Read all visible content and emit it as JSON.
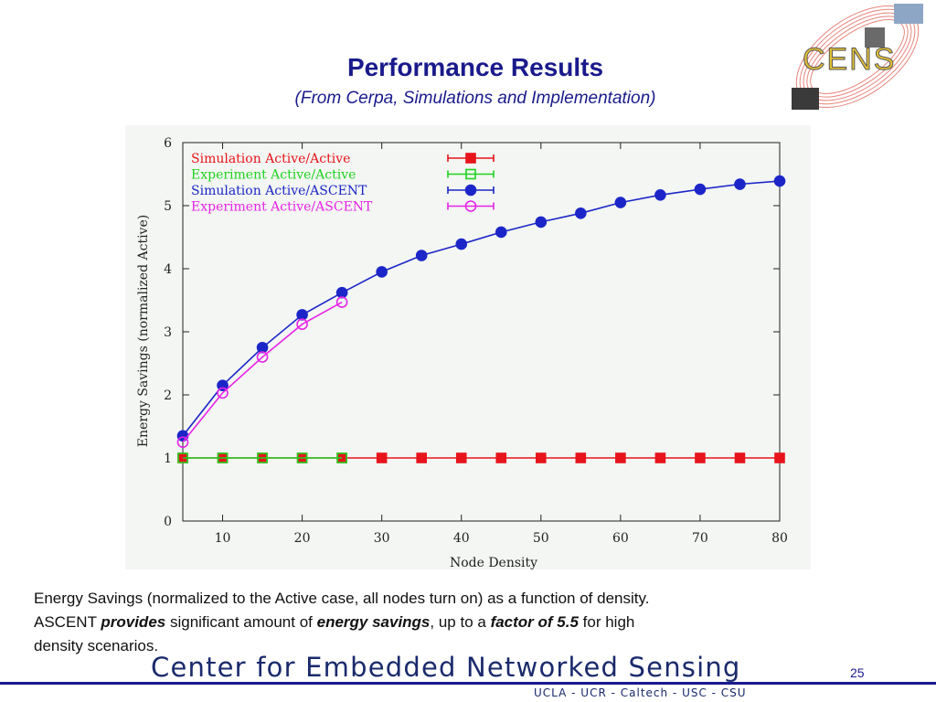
{
  "slide": {
    "title": "Performance Results",
    "subtitle": "(From Cerpa, Simulations and Implementation)",
    "page_number": "25"
  },
  "logo": {
    "text": "CENS"
  },
  "caption": {
    "line1": "Energy Savings (normalized to the Active case, all nodes turn on) as a function of density.",
    "p1": "ASCENT ",
    "b1": "provides",
    "p2": " significant amount of ",
    "b2": "energy savings",
    "p3": ", up to a ",
    "b3": "factor of 5.5",
    "p4": " for high",
    "line3": "density scenarios."
  },
  "footer": {
    "name": "Center for Embedded Networked Sensing",
    "institutions": "UCLA - UCR - Caltech - USC - CSU"
  },
  "chart_data": {
    "type": "line",
    "xlabel": "Node Density",
    "ylabel": "Energy Savings (normalized Active)",
    "xlim": [
      5,
      80
    ],
    "ylim": [
      0,
      6
    ],
    "xticks": [
      10,
      20,
      30,
      40,
      50,
      60,
      70,
      80
    ],
    "yticks": [
      0,
      1,
      2,
      3,
      4,
      5,
      6
    ],
    "grid": false,
    "legend_position": "top-left",
    "series": [
      {
        "name": "Simulation Active/Active",
        "color": "#e8141c",
        "marker": "square-filled",
        "x": [
          5,
          10,
          15,
          20,
          25,
          30,
          35,
          40,
          45,
          50,
          55,
          60,
          65,
          70,
          75,
          80
        ],
        "y": [
          1,
          1,
          1,
          1,
          1,
          1,
          1,
          1,
          1,
          1,
          1,
          1,
          1,
          1,
          1,
          1
        ]
      },
      {
        "name": "Experiment Active/Active",
        "color": "#1fd21f",
        "marker": "square-open",
        "x": [
          5,
          10,
          15,
          20,
          25
        ],
        "y": [
          1,
          1,
          1,
          1,
          1
        ]
      },
      {
        "name": "Simulation Active/ASCENT",
        "color": "#1c26c8",
        "marker": "circle-filled",
        "x": [
          5,
          10,
          15,
          20,
          25,
          30,
          35,
          40,
          45,
          50,
          55,
          60,
          65,
          70,
          75,
          80
        ],
        "y": [
          1.35,
          2.15,
          2.75,
          3.27,
          3.62,
          3.95,
          4.21,
          4.39,
          4.58,
          4.74,
          4.88,
          5.05,
          5.17,
          5.26,
          5.34,
          5.39
        ]
      },
      {
        "name": "Experiment Active/ASCENT",
        "color": "#e623e6",
        "marker": "circle-open",
        "x": [
          5,
          10,
          15,
          20,
          25
        ],
        "y": [
          1.25,
          2.03,
          2.6,
          3.12,
          3.47
        ]
      }
    ]
  }
}
